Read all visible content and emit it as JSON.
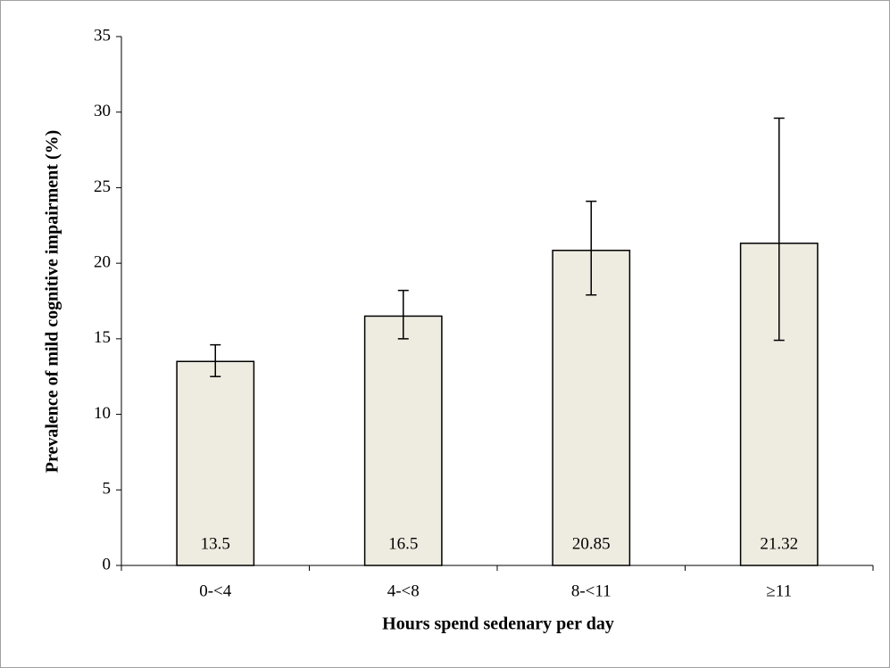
{
  "chart_data": {
    "type": "bar",
    "x_label": "Hours spend sedenary per day",
    "y_label": "Prevalence of mild cognitive impairment (%)",
    "categories": [
      "0-<4",
      "4-<8",
      "8-<11",
      "≥11"
    ],
    "values": [
      13.5,
      16.5,
      20.85,
      21.32
    ],
    "lower": [
      12.5,
      15.0,
      17.9,
      14.9
    ],
    "upper": [
      14.6,
      18.2,
      24.1,
      29.6
    ],
    "color": "#eeebe0",
    "ylim": [
      0,
      35
    ],
    "yticks": [
      0,
      5,
      10,
      15,
      20,
      25,
      30,
      35
    ]
  }
}
